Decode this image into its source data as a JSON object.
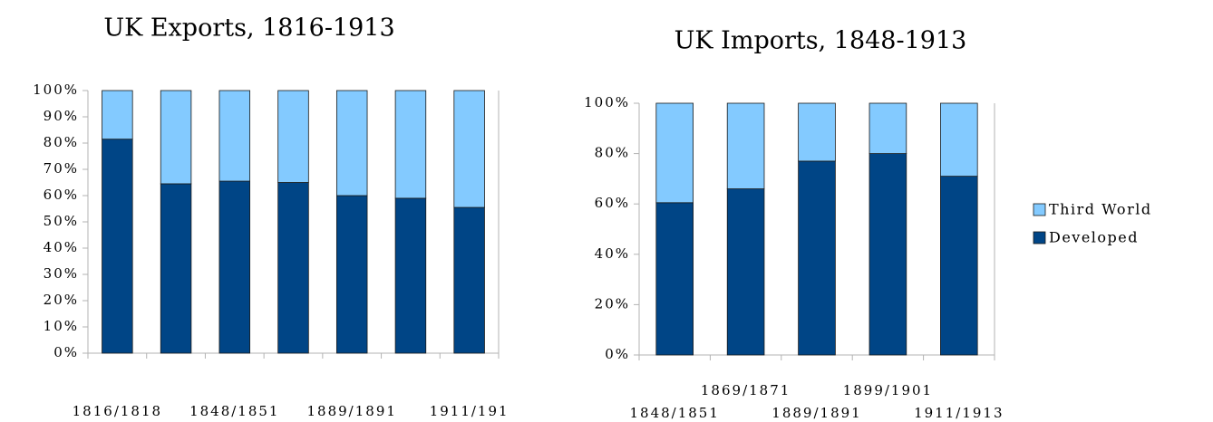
{
  "chart_data": [
    {
      "type": "stacked_bar",
      "title": "UK Exports, 1816-1913",
      "categories": [
        "1816/1818",
        null,
        "1848/1851",
        null,
        "1889/1891",
        null,
        "1911/191"
      ],
      "series": [
        {
          "color": "#004586",
          "values": [
            81.5,
            64.5,
            65.5,
            65,
            60,
            59,
            55.5
          ]
        },
        {
          "color": "#83caff",
          "values": [
            18.5,
            35.5,
            34.5,
            35,
            40,
            41,
            44.5
          ]
        }
      ],
      "ylim": [
        0,
        100
      ],
      "yticks": [
        {
          "value": 0,
          "label": "0%"
        },
        {
          "value": 10,
          "label": "10%"
        },
        {
          "value": 20,
          "label": "20%"
        },
        {
          "value": 30,
          "label": "30%"
        },
        {
          "value": 40,
          "label": "40%"
        },
        {
          "value": 50,
          "label": "50%"
        },
        {
          "value": 60,
          "label": "60%"
        },
        {
          "value": 70,
          "label": "70%"
        },
        {
          "value": 80,
          "label": "80%"
        },
        {
          "value": 90,
          "label": "90%"
        },
        {
          "value": 100,
          "label": "100%"
        }
      ],
      "grid": false
    },
    {
      "type": "stacked_bar",
      "title": "UK Imports, 1848-1913",
      "categories": [
        "1848/1851",
        "1869/1871",
        "1889/1891",
        "1899/1901",
        "1911/1913"
      ],
      "series": [
        {
          "name": "Developed",
          "color": "#004586",
          "values": [
            60.5,
            66,
            77,
            80,
            71
          ]
        },
        {
          "name": "Third World",
          "color": "#83caff",
          "values": [
            39.5,
            34,
            23,
            20,
            29
          ]
        }
      ],
      "ylim": [
        0,
        100
      ],
      "yticks": [
        {
          "value": 0,
          "label": "0%"
        },
        {
          "value": 20,
          "label": "20%"
        },
        {
          "value": 40,
          "label": "40%"
        },
        {
          "value": 60,
          "label": "60%"
        },
        {
          "value": 80,
          "label": "80%"
        },
        {
          "value": 100,
          "label": "100%"
        }
      ],
      "grid": false,
      "legend": "right"
    }
  ]
}
